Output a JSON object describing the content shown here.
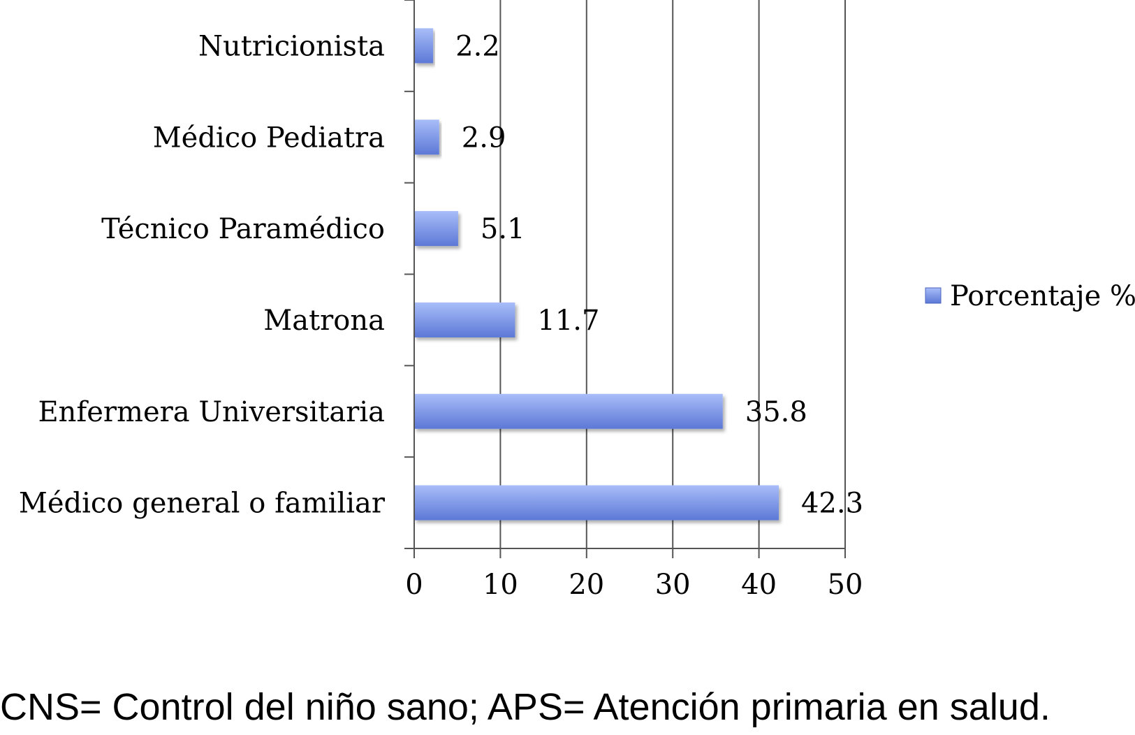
{
  "chart_data": {
    "type": "bar",
    "orientation": "horizontal",
    "categories": [
      "Médico general o familiar",
      "Enfermera Universitaria",
      "Matrona",
      "Técnico Paramédico",
      "Médico Pediatra",
      "Nutricionista"
    ],
    "series": [
      {
        "name": "Porcentaje %",
        "values": [
          42.3,
          35.8,
          11.7,
          5.1,
          2.9,
          2.2
        ]
      }
    ],
    "value_labels": [
      "42.3",
      "35.8",
      "11.7",
      "5.1",
      "2.9",
      "2.2"
    ],
    "xticks": [
      "0",
      "10",
      "20",
      "30",
      "40",
      "50"
    ],
    "xlim": [
      0,
      50
    ],
    "title": "",
    "xlabel": "",
    "ylabel": "",
    "grid": "vertical",
    "legend": "right",
    "colors": {
      "bar_light": "#a8bdf8",
      "bar_dark": "#5c78d6",
      "grid": "#555555"
    }
  },
  "caption": "CNS= Control del niño sano; APS= Atención primaria en salud."
}
